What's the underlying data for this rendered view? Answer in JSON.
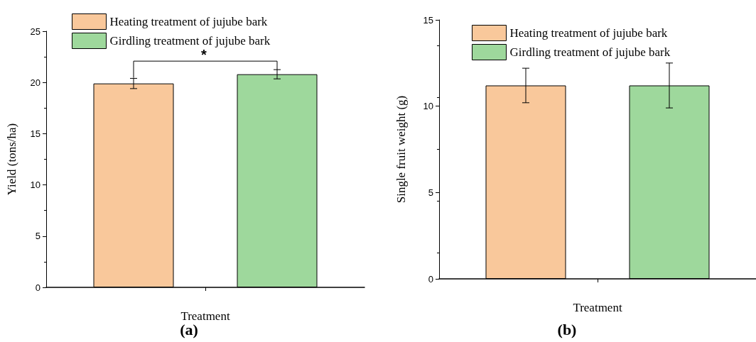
{
  "chart_data": [
    {
      "type": "bar",
      "title": "(a)",
      "xlabel": "Treatment",
      "ylabel": "Yield (tons/ha)",
      "categories": [
        null
      ],
      "series": [
        {
          "name": "Heating treatment of jujube bark",
          "color": "#f9c89b",
          "values": [
            19.9
          ],
          "errors": [
            0.5
          ]
        },
        {
          "name": "Girdling treatment of jujube bark",
          "color": "#9ed89c",
          "values": [
            20.8
          ],
          "errors": [
            0.45
          ]
        }
      ],
      "ylim": [
        0,
        25
      ],
      "yticks": [
        0,
        5,
        10,
        15,
        20,
        25
      ],
      "grid": false,
      "legend": "top",
      "annotations": [
        "*"
      ]
    },
    {
      "type": "bar",
      "title": "(b)",
      "xlabel": "Treatment",
      "ylabel": "Single fruit weight (g)",
      "categories": [
        null
      ],
      "series": [
        {
          "name": "Heating treatment of jujube bark",
          "color": "#f9c89b",
          "values": [
            11.2
          ],
          "errors": [
            1.0
          ]
        },
        {
          "name": "Girdling treatment of jujube bark",
          "color": "#9ed89c",
          "values": [
            11.2
          ],
          "errors": [
            1.3
          ]
        }
      ],
      "ylim": [
        0,
        15
      ],
      "yticks": [
        0,
        5,
        10,
        15
      ],
      "grid": false,
      "legend": "top"
    }
  ]
}
